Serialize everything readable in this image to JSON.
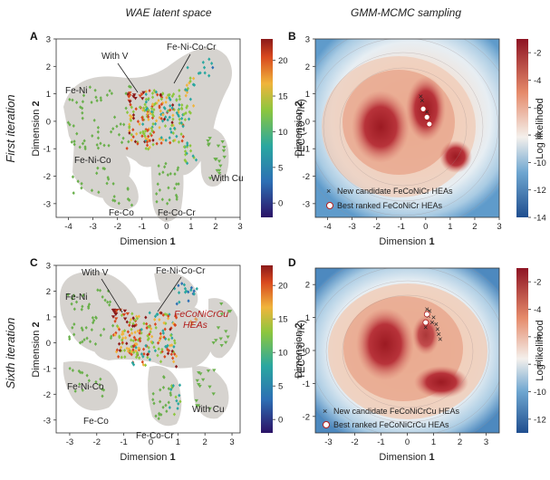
{
  "column_titles": {
    "left": "WAE latent space",
    "right": "GMM-MCMC sampling"
  },
  "row_titles": {
    "top": "First iteration",
    "bottom": "Sixth iteration"
  },
  "colors": {
    "region_fill": "#d6d3cf",
    "scatter_green": "#6ab04c",
    "candidate_marker": "#222222",
    "best_marker_fill": "#ffffff",
    "best_marker_edge": "#b02020",
    "annotation_red": "#b01c1c"
  },
  "chart_data": [
    {
      "panel": "A",
      "type": "scatter",
      "xlabel_prefix": "Dimension",
      "xlabel_bold": "1",
      "ylabel_prefix": "Dimension",
      "ylabel_bold": "2",
      "xlim": [
        -4.5,
        3
      ],
      "ylim": [
        -3.5,
        3
      ],
      "xticks": [
        "-4",
        "-3",
        "-2",
        "-1",
        "0",
        "1",
        "2",
        "3"
      ],
      "yticks": [
        "-3",
        "-2",
        "-1",
        "0",
        "1",
        "2",
        "3"
      ],
      "cluster_labels": [
        "Fe-Ni",
        "With V",
        "Fe-Ni-Co-Cr",
        "Fe-Ni-Co",
        "Fe-Co",
        "Fe-Co-Cr",
        "With Cu"
      ],
      "colorbar": {
        "label": "TEC (10⁻⁶/K)",
        "ticks": [
          "0",
          "5",
          "10",
          "15",
          "20"
        ],
        "range": [
          -2,
          23
        ]
      }
    },
    {
      "panel": "B",
      "type": "heatmap",
      "xlabel_prefix": "Dimension",
      "xlabel_bold": "1",
      "ylabel_prefix": "Dimension",
      "ylabel_bold": "2",
      "xlim": [
        -4.5,
        3
      ],
      "ylim": [
        -3.5,
        3
      ],
      "xticks": [
        "-4",
        "-3",
        "-2",
        "-1",
        "0",
        "1",
        "2",
        "3"
      ],
      "yticks": [
        "-3",
        "-2",
        "-1",
        "0",
        "1",
        "2",
        "3"
      ],
      "legend": [
        "New candidate FeCoNiCr HEAs",
        "Best ranked FeCoNiCr HEAs"
      ],
      "candidates": [
        [
          -0.2,
          0.9
        ],
        [
          -0.15,
          0.75
        ],
        [
          0.05,
          0.35
        ],
        [
          0.1,
          0.2
        ]
      ],
      "best_ranked": [
        [
          -0.1,
          0.45
        ],
        [
          0.05,
          0.15
        ],
        [
          0.15,
          -0.1
        ]
      ],
      "colorbar": {
        "label": "Log likelihood",
        "ticks": [
          "-2",
          "-4",
          "-6",
          "-8",
          "-10",
          "-12",
          "-14"
        ],
        "range": [
          -14,
          -1
        ]
      }
    },
    {
      "panel": "C",
      "type": "scatter",
      "xlabel_prefix": "Dimension",
      "xlabel_bold": "1",
      "ylabel_prefix": "Dimension",
      "ylabel_bold": "2",
      "xlim": [
        -3.5,
        3.3
      ],
      "ylim": [
        -3.5,
        3
      ],
      "xticks": [
        "-3",
        "-2",
        "-1",
        "0",
        "1",
        "2",
        "3"
      ],
      "yticks": [
        "-3",
        "-2",
        "-1",
        "0",
        "1",
        "2",
        "3"
      ],
      "cluster_labels": [
        "Fe-Ni",
        "With V",
        "Fe-Ni-Co-Cr",
        "Fe-Ni-Co",
        "Fe-Co",
        "Fe-Co-Cr",
        "With Cu"
      ],
      "highlight_label": [
        "FeCoNiCrCu",
        "HEAs"
      ],
      "colorbar": {
        "label": "TEC (10⁻⁶/K)",
        "ticks": [
          "0",
          "5",
          "10",
          "15",
          "20"
        ],
        "range": [
          -2,
          23
        ]
      }
    },
    {
      "panel": "D",
      "type": "heatmap",
      "xlabel_prefix": "Dimension",
      "xlabel_bold": "1",
      "ylabel_prefix": "Dimension",
      "ylabel_bold": "2",
      "xlim": [
        -3.5,
        3.5
      ],
      "ylim": [
        -2.5,
        2.5
      ],
      "xticks": [
        "-3",
        "-2",
        "-1",
        "0",
        "1",
        "2",
        "3"
      ],
      "yticks": [
        "-2",
        "-1",
        "0",
        "1",
        "2"
      ],
      "legend": [
        "New candidate FeCoNiCrCu HEAs",
        "Best ranked FeCoNiCrCu HEAs"
      ],
      "candidates": [
        [
          0.75,
          1.25
        ],
        [
          0.85,
          1.2
        ],
        [
          0.8,
          1.05
        ],
        [
          1.0,
          1.0
        ],
        [
          0.95,
          0.85
        ],
        [
          1.1,
          0.8
        ],
        [
          1.15,
          0.65
        ],
        [
          1.2,
          0.5
        ],
        [
          1.25,
          0.35
        ],
        [
          0.7,
          0.7
        ]
      ],
      "best_ranked": [
        [
          0.75,
          1.1
        ],
        [
          0.7,
          0.85
        ]
      ],
      "colorbar": {
        "label": "Log likelihood",
        "ticks": [
          "-2",
          "-4",
          "-6",
          "-8",
          "-10",
          "-12"
        ],
        "range": [
          -13,
          -1
        ]
      }
    }
  ]
}
